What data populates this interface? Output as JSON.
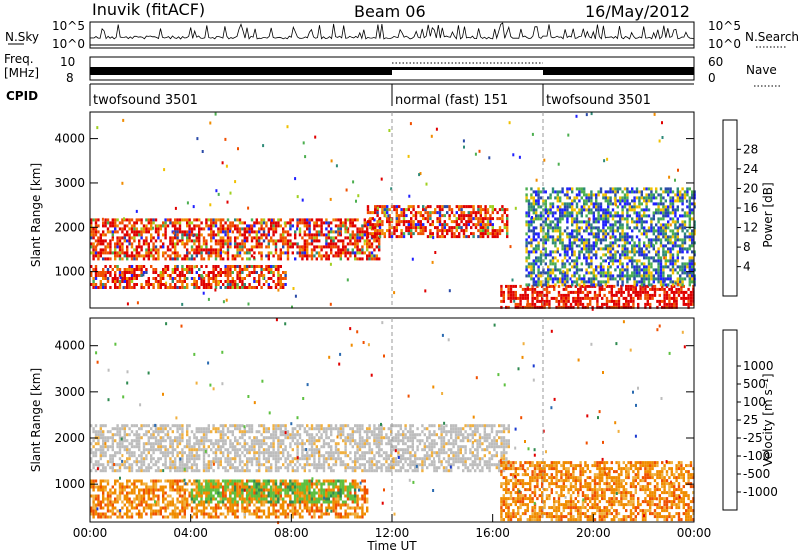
{
  "header": {
    "station": "Inuvik (fitACF)",
    "beam": "Beam 06",
    "date": "16/May/2012"
  },
  "top_panels": {
    "nsky_label": "N.Sky",
    "nsky_ticks": [
      "10^5",
      "10^0"
    ],
    "nsearch_label": "N.Search",
    "freq_label_1": "Freq.",
    "freq_label_2": "[MHz]",
    "freq_ticks": [
      "10",
      "8"
    ],
    "nave_label": "Nave",
    "nave_ticks": [
      "60",
      "0"
    ],
    "cpid_label": "CPID",
    "cpid_segments": [
      {
        "label": "twofsound 3501",
        "start": "00:00",
        "end": "12:00"
      },
      {
        "label": "normal (fast) 151",
        "start": "12:00",
        "end": "18:00"
      },
      {
        "label": "twofsound 3501",
        "start": "18:00",
        "end": "24:00"
      }
    ]
  },
  "chart_data": [
    {
      "type": "heatmap",
      "name": "power",
      "ylabel": "Slant Range [km]",
      "x_range_hours": [
        0,
        24
      ],
      "ylim": [
        180,
        4600
      ],
      "y_ticks": [
        1000,
        2000,
        3000,
        4000
      ],
      "colorbar": {
        "title": "Power [dB]",
        "colors": [
          "#1f1fff",
          "#2a4aa8",
          "#2e8a78",
          "#4caf50",
          "#a0d020",
          "#f0c000",
          "#f08c00",
          "#f05000",
          "#e00000"
        ],
        "ticks": [
          "4",
          "8",
          "12",
          "16",
          "20",
          "24",
          "28"
        ]
      },
      "bands": [
        {
          "t0": 0.0,
          "t1": 11.5,
          "r0": 1300,
          "r1": 2200,
          "value": "red-orange dominant"
        },
        {
          "t0": 0.0,
          "t1": 7.8,
          "r0": 650,
          "r1": 1150,
          "value": "red-orange dominant"
        },
        {
          "t0": 11.0,
          "t1": 16.6,
          "r0": 1800,
          "r1": 2500,
          "value": "red-orange dominant"
        },
        {
          "t0": 16.3,
          "t1": 24.0,
          "r0": 200,
          "r1": 700,
          "value": "red dominant"
        },
        {
          "t0": 17.3,
          "t1": 24.0,
          "r0": 700,
          "r1": 2900,
          "value": "blue-green scattered"
        }
      ]
    },
    {
      "type": "heatmap",
      "name": "velocity",
      "ylabel": "Slant Range [km]",
      "xlabel": "Time UT",
      "x_range_hours": [
        0,
        24
      ],
      "x_ticks": [
        "00:00",
        "04:00",
        "08:00",
        "12:00",
        "16:00",
        "20:00",
        "00:00"
      ],
      "ylim": [
        180,
        4600
      ],
      "y_ticks": [
        1000,
        2000,
        3000,
        4000
      ],
      "colorbar": {
        "title": "Velocity [m s⁻¹]",
        "colors": [
          "#e00000",
          "#f05000",
          "#f08c00",
          "#f0b040",
          "#bdbdbd",
          "#bdbdbd",
          "#5dc040",
          "#2e8a50",
          "#2a6ab0",
          "#1a3ad0"
        ],
        "ticks": [
          "-1000",
          "-500",
          "-100",
          "-25",
          "25",
          "100",
          "500",
          "1000"
        ]
      },
      "bands": [
        {
          "t0": 0.0,
          "t1": 16.6,
          "r0": 1300,
          "r1": 2300,
          "value": "-25..25 grey"
        },
        {
          "t0": 0.0,
          "t1": 11.0,
          "r0": 300,
          "r1": 1100,
          "value": "-500..-100 orange"
        },
        {
          "t0": 4.0,
          "t1": 10.5,
          "r0": 600,
          "r1": 1100,
          "value": "100..500 green"
        },
        {
          "t0": 16.3,
          "t1": 24.0,
          "r0": 200,
          "r1": 1500,
          "value": "-500..-100 orange"
        }
      ]
    }
  ]
}
